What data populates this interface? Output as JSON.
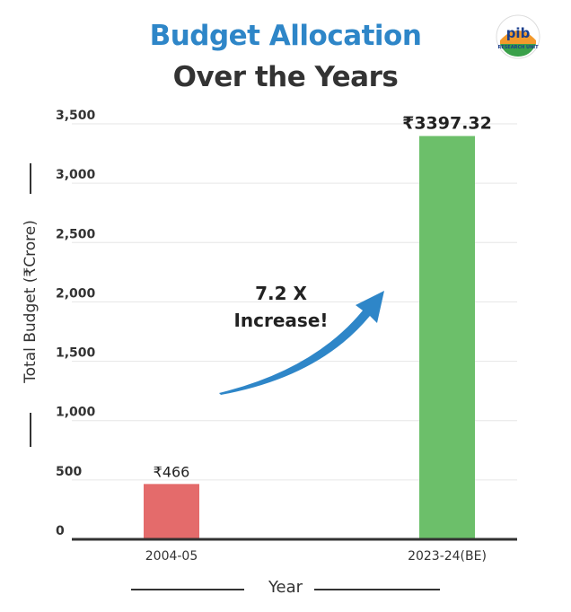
{
  "title_line1": "Budget Allocation",
  "title_line2": "Over the Years",
  "logo_text": "pib RESEARCH UNIT",
  "annotation": {
    "line1": "7.2 X",
    "line2": "Increase!"
  },
  "colors": {
    "title_accent": "#2e86c8",
    "bar_1": "#e46b6b",
    "bar_2": "#6cbf6a",
    "arrow": "#2e86c8"
  },
  "chart_data": {
    "type": "bar",
    "categories": [
      "2004-05",
      "2023-24(BE)"
    ],
    "values": [
      466,
      3397.32
    ],
    "data_labels": [
      "₹466",
      "₹3397.32"
    ],
    "title": "Budget Allocation Over the Years",
    "xlabel": "Year",
    "ylabel": "Total Budget (₹Crore)",
    "ylim": [
      0,
      3500
    ],
    "yticks": [
      0,
      500,
      1000,
      1500,
      2000,
      2500,
      3000,
      3500
    ],
    "ytick_labels": [
      "0",
      "500",
      "1,000",
      "1,500",
      "2,000",
      "2,500",
      "3,000",
      "3,500"
    ],
    "grid": true,
    "legend": "none"
  }
}
